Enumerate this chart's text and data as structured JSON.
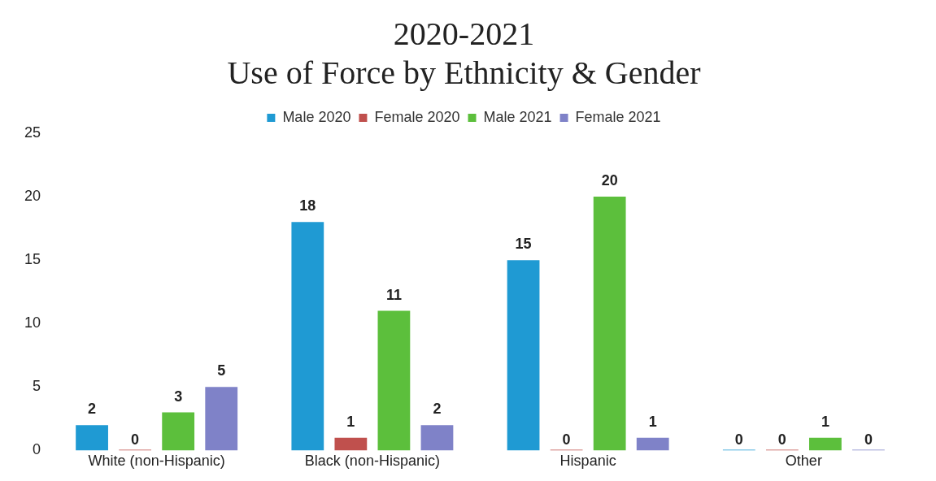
{
  "chart_data": {
    "type": "bar",
    "title": "2020-2021\nUse of Force by Ethnicity & Gender",
    "categories": [
      "White (non-Hispanic)",
      "Black (non-Hispanic)",
      "Hispanic",
      "Other"
    ],
    "series": [
      {
        "name": "Male 2020",
        "color": "#1f9ad3",
        "values": [
          2,
          18,
          15,
          0
        ]
      },
      {
        "name": "Female 2020",
        "color": "#c0504d",
        "values": [
          0,
          1,
          0,
          0
        ]
      },
      {
        "name": "Male 2021",
        "color": "#5cbf3c",
        "values": [
          3,
          11,
          20,
          1
        ]
      },
      {
        "name": "Female 2021",
        "color": "#7f82c8",
        "values": [
          5,
          2,
          1,
          0
        ]
      }
    ],
    "ylim": [
      0,
      25
    ],
    "yticks": [
      0,
      5,
      10,
      15,
      20,
      25
    ],
    "grid": false,
    "legend": "top",
    "data_labels": true
  }
}
